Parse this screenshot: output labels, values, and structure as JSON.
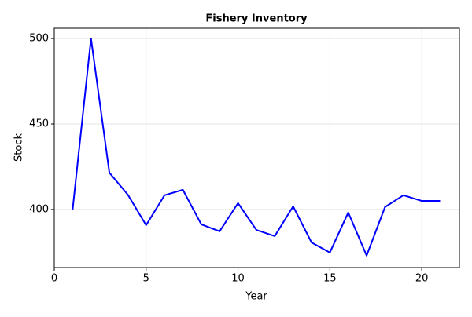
{
  "chart_data": {
    "type": "line",
    "title": "Fishery Inventory",
    "x_label": "Year",
    "y_label": "Stock",
    "x": [
      1,
      2,
      3,
      4,
      5,
      6,
      7,
      8,
      9,
      10,
      11,
      12,
      13,
      14,
      15,
      16,
      17,
      18,
      19,
      20,
      21
    ],
    "series": [
      {
        "name": "Stock",
        "color": "#0000ff",
        "values": [
          400,
          500,
          421.5,
          408.7,
          390.8,
          408.3,
          411.5,
          391.3,
          387.2,
          403.7,
          388,
          384.4,
          401.8,
          380.7,
          374.8,
          398.2,
          373,
          401.4,
          408.3,
          405,
          405
        ]
      }
    ],
    "xlim": [
      0,
      22.05
    ],
    "ylim": [
      366,
      506
    ],
    "xticks": [
      0,
      5,
      10,
      15,
      20
    ],
    "yticks": [
      400,
      450,
      500
    ],
    "grid": true
  }
}
